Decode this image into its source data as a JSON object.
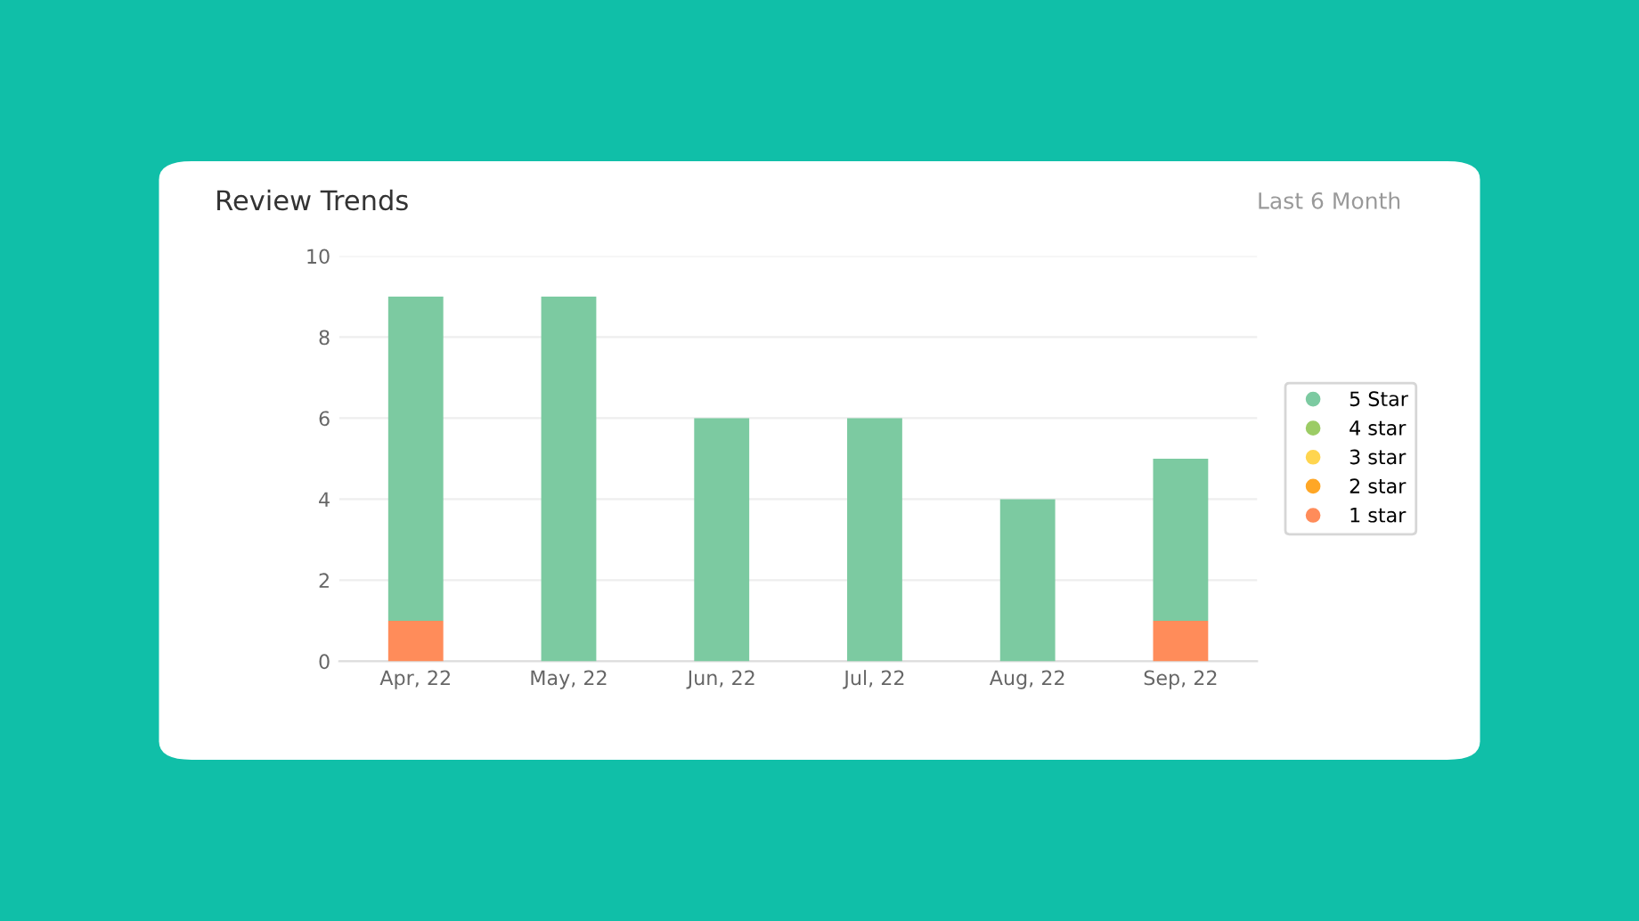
{
  "chart_data": {
    "type": "bar",
    "title": "Review Trends",
    "stacked": true,
    "categories": [
      "Apr, 22",
      "May, 22",
      "Jun, 22",
      "Jul, 22",
      "Aug, 22",
      "Sep, 22"
    ],
    "series": [
      {
        "name": "1 star",
        "color": "#ff8c5a",
        "values": [
          1,
          0,
          0,
          0,
          0,
          1
        ]
      },
      {
        "name": "2 star",
        "color": "#ffa726",
        "values": [
          0,
          0,
          0,
          0,
          0,
          0
        ]
      },
      {
        "name": "3 star",
        "color": "#ffd54f",
        "values": [
          0,
          0,
          0,
          0,
          0,
          0
        ]
      },
      {
        "name": "4 star",
        "color": "#9ccc65",
        "values": [
          0,
          0,
          0,
          0,
          0,
          0
        ]
      },
      {
        "name": "5 Star",
        "color": "#7ccaa1",
        "values": [
          8,
          9,
          6,
          6,
          4,
          4
        ]
      }
    ],
    "ylim": [
      0,
      10
    ],
    "yticks": [
      0,
      2,
      4,
      6,
      8,
      10
    ],
    "grid": "y",
    "legend": "right",
    "annotations": [
      "Last 6 Month"
    ]
  }
}
